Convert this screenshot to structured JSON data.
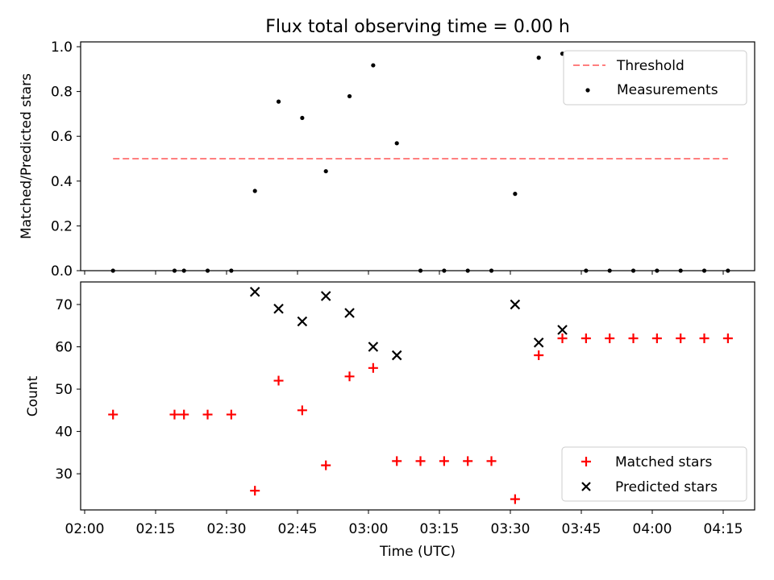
{
  "title": "Flux total observing time = 0.00 h",
  "xlabel": "Time (UTC)",
  "xticks": [
    "02:00",
    "02:15",
    "02:30",
    "02:45",
    "03:00",
    "03:15",
    "03:30",
    "03:45",
    "04:00",
    "04:15"
  ],
  "colors": {
    "threshold": "#ff7f7f",
    "measurement": "#000000",
    "matched": "#ff0000",
    "predicted": "#000000"
  },
  "chart_data": [
    {
      "type": "scatter",
      "ylabel": "Matched/Predicted stars",
      "ylim": [
        0,
        1.0
      ],
      "yticks": [
        "0.0",
        "0.2",
        "0.4",
        "0.6",
        "0.8",
        "1.0"
      ],
      "legend": {
        "placement": "top-right",
        "entries": [
          "Threshold",
          "Measurements"
        ]
      },
      "threshold": {
        "name": "Threshold",
        "y": 0.5,
        "x_start": "02:06",
        "x_end": "04:16",
        "style": "dashed"
      },
      "series": [
        {
          "name": "Measurements",
          "points": [
            [
              "02:06",
              0.0
            ],
            [
              "02:19",
              0.0
            ],
            [
              "02:21",
              0.0
            ],
            [
              "02:26",
              0.0
            ],
            [
              "02:31",
              0.0
            ],
            [
              "02:36",
              0.356
            ],
            [
              "02:41",
              0.755
            ],
            [
              "02:46",
              0.682
            ],
            [
              "02:51",
              0.444
            ],
            [
              "02:56",
              0.779
            ],
            [
              "03:01",
              0.917
            ],
            [
              "03:06",
              0.569
            ],
            [
              "03:11",
              0.0
            ],
            [
              "03:16",
              0.0
            ],
            [
              "03:21",
              0.0
            ],
            [
              "03:26",
              0.0
            ],
            [
              "03:31",
              0.343
            ],
            [
              "03:36",
              0.951
            ],
            [
              "03:41",
              0.969
            ],
            [
              "03:46",
              0.0
            ],
            [
              "03:51",
              0.0
            ],
            [
              "03:56",
              0.0
            ],
            [
              "04:01",
              0.0
            ],
            [
              "04:06",
              0.0
            ],
            [
              "04:11",
              0.0
            ],
            [
              "04:16",
              0.0
            ]
          ]
        }
      ]
    },
    {
      "type": "scatter",
      "ylabel": "Count",
      "ylim": [
        21,
        75
      ],
      "yticks": [
        "30",
        "40",
        "50",
        "60",
        "70"
      ],
      "legend": {
        "placement": "bottom-right",
        "entries": [
          "Matched stars",
          "Predicted stars"
        ]
      },
      "series": [
        {
          "name": "Matched stars",
          "marker": "+",
          "points": [
            [
              "02:06",
              44
            ],
            [
              "02:19",
              44
            ],
            [
              "02:21",
              44
            ],
            [
              "02:26",
              44
            ],
            [
              "02:31",
              44
            ],
            [
              "02:36",
              26
            ],
            [
              "02:41",
              52
            ],
            [
              "02:46",
              45
            ],
            [
              "02:51",
              32
            ],
            [
              "02:56",
              53
            ],
            [
              "03:01",
              55
            ],
            [
              "03:06",
              33
            ],
            [
              "03:11",
              33
            ],
            [
              "03:16",
              33
            ],
            [
              "03:21",
              33
            ],
            [
              "03:26",
              33
            ],
            [
              "03:31",
              24
            ],
            [
              "03:36",
              58
            ],
            [
              "03:41",
              62
            ],
            [
              "03:46",
              62
            ],
            [
              "03:51",
              62
            ],
            [
              "03:56",
              62
            ],
            [
              "04:01",
              62
            ],
            [
              "04:06",
              62
            ],
            [
              "04:11",
              62
            ],
            [
              "04:16",
              62
            ]
          ]
        },
        {
          "name": "Predicted stars",
          "marker": "x",
          "points": [
            [
              "02:36",
              73
            ],
            [
              "02:41",
              69
            ],
            [
              "02:46",
              66
            ],
            [
              "02:51",
              72
            ],
            [
              "02:56",
              68
            ],
            [
              "03:01",
              60
            ],
            [
              "03:06",
              58
            ],
            [
              "03:31",
              70
            ],
            [
              "03:36",
              61
            ],
            [
              "03:41",
              64
            ]
          ]
        }
      ]
    }
  ]
}
